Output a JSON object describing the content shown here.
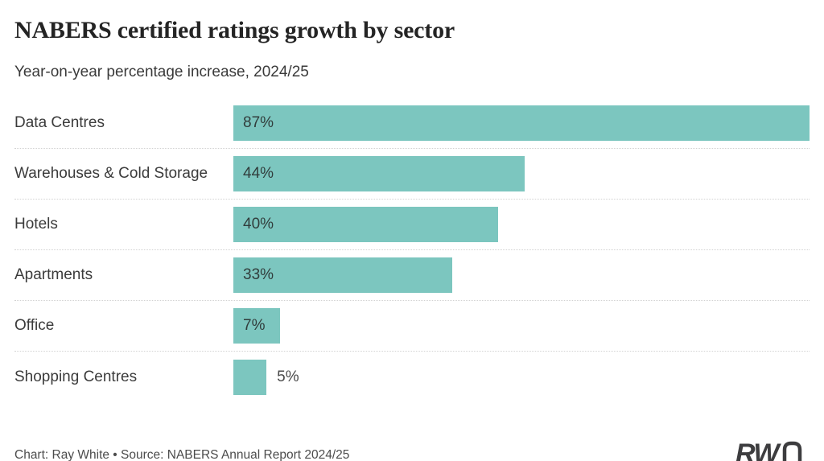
{
  "header": {
    "title": "NABERS certified ratings growth by sector",
    "subtitle": "Year-on-year percentage increase, 2024/25"
  },
  "chart_data": {
    "type": "bar",
    "orientation": "horizontal",
    "title": "NABERS certified ratings growth by sector",
    "subtitle": "Year-on-year percentage increase, 2024/25",
    "categories": [
      "Data Centres",
      "Warehouses & Cold Storage",
      "Hotels",
      "Apartments",
      "Office",
      "Shopping Centres"
    ],
    "values": [
      87,
      44,
      40,
      33,
      7,
      5
    ],
    "value_labels": [
      "87%",
      "44%",
      "40%",
      "33%",
      "7%",
      "5%"
    ],
    "unit": "%",
    "xlim": [
      0,
      87
    ],
    "bar_color": "#7cc6bf",
    "label_outside": [
      false,
      false,
      false,
      false,
      false,
      true
    ],
    "grid": "dotted row separators",
    "legend": "none"
  },
  "footer": {
    "credit": "Chart: Ray White  •  Source: NABERS Annual Report 2024/25",
    "logo": {
      "bold": "RW",
      "light": "n",
      "tm": "™"
    }
  },
  "colors": {
    "bar": "#7cc6bf",
    "title": "#242424",
    "label": "#3b3b3b",
    "separator": "#d2d2d2",
    "footer_text": "#4c4c4c",
    "logo": "#3d3d3f"
  }
}
